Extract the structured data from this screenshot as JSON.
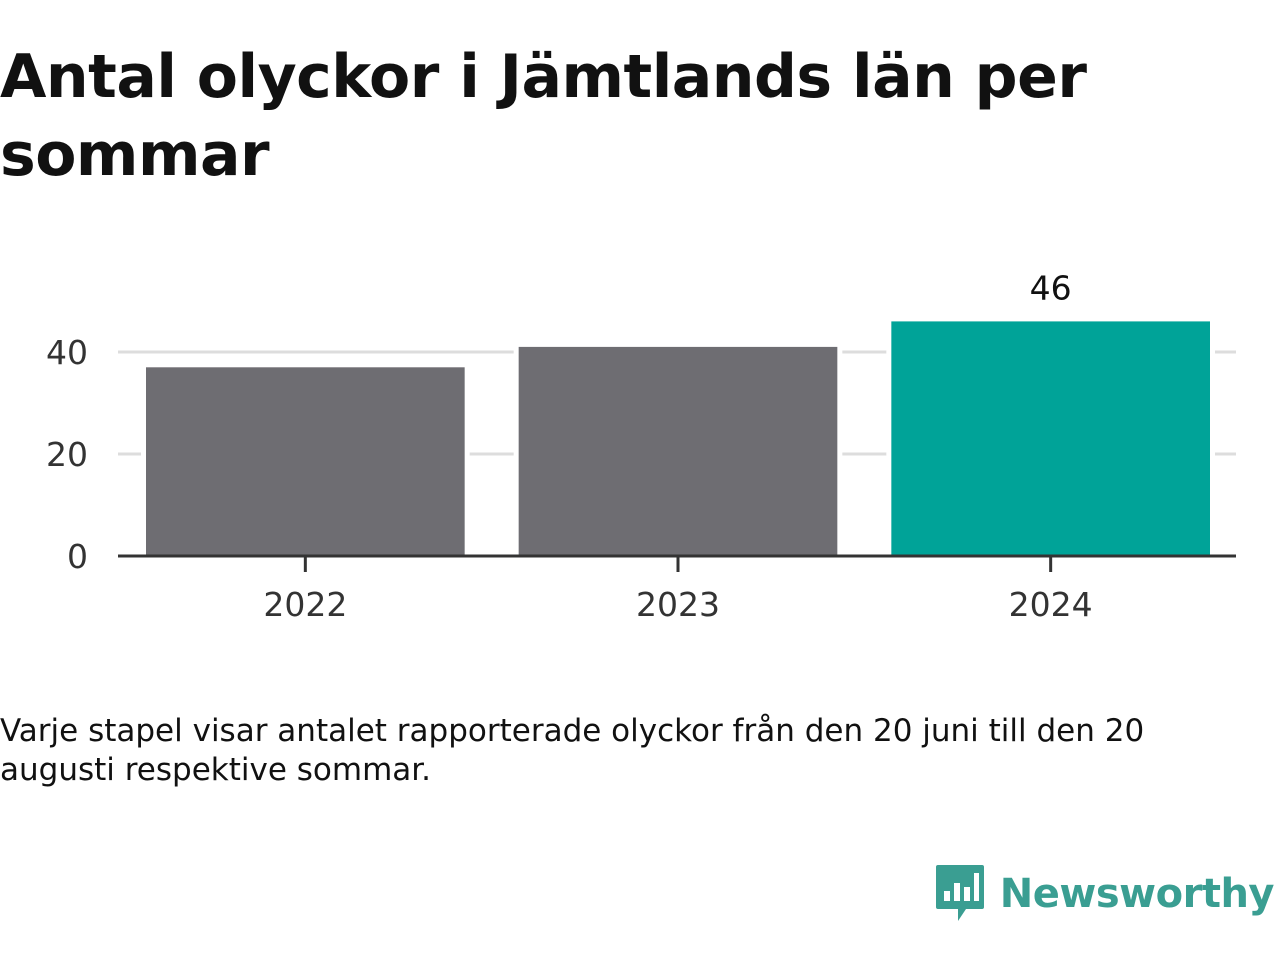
{
  "chart_data": {
    "type": "bar",
    "title": "Antal olyckor i Jämtlands län per sommar",
    "xlabel": "",
    "ylabel": "",
    "categories": [
      "2022",
      "2023",
      "2024"
    ],
    "values": [
      37,
      41,
      46
    ],
    "data_labels": [
      "",
      "",
      "46"
    ],
    "ylim": [
      0,
      46
    ],
    "yticks": [
      0,
      20,
      40
    ],
    "ytick_labels": [
      "0",
      "20",
      "40"
    ],
    "grid": true,
    "bar_colors": [
      "#6e6d72",
      "#6e6d72",
      "#00a398"
    ],
    "gridline_color": "#dddddd",
    "axis_color": "#333333"
  },
  "caption": "Varje stapel visar antalet rapporterade olyckor från den 20 juni till den 20 augusti respektive sommar.",
  "brand": {
    "name": "Newsworthy",
    "color": "#3a9e92",
    "icon": "newsworthy-logo-icon"
  }
}
